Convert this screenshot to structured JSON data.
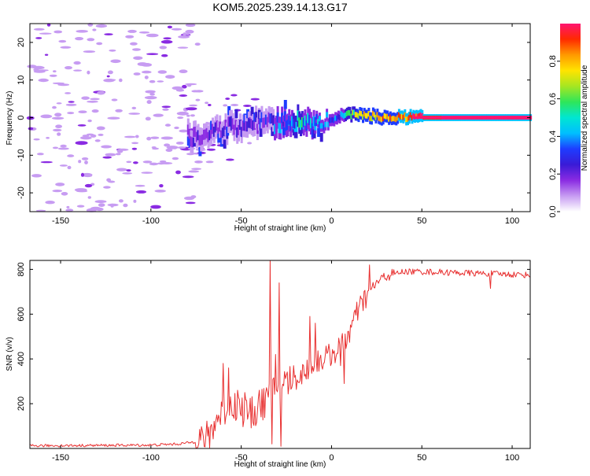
{
  "title": "KOM5.2025.239.14.13.G17",
  "chart_data": [
    {
      "type": "heatmap",
      "name": "spectrogram",
      "xlabel": "Height of straight line (km)",
      "ylabel": "Frequency (Hz)",
      "xlim": [
        -167,
        110
      ],
      "ylim": [
        -25,
        25
      ],
      "x_ticks": [
        -150,
        -100,
        -50,
        0,
        50,
        100
      ],
      "y_ticks": [
        -20,
        -10,
        0,
        10,
        20
      ],
      "colorbar": {
        "label": "Normalized spectral amplitude",
        "range": [
          0,
          1
        ],
        "ticks": [
          "0.0",
          "0.2",
          "0.4",
          "0.6",
          "0.8"
        ],
        "colormap": [
          "#ffffff",
          "#c79cf2",
          "#8a2be2",
          "#3a1bd6",
          "#1e3cff",
          "#00bfff",
          "#00e6d2",
          "#2ee65a",
          "#a6e622",
          "#ffe400",
          "#ff9a00",
          "#ff2a00",
          "#ff1470"
        ]
      },
      "ridge": [
        {
          "x": -80,
          "f": -5.0,
          "a": 0.1
        },
        {
          "x": -70,
          "f": -4.0,
          "a": 0.15
        },
        {
          "x": -60,
          "f": -3.0,
          "a": 0.18
        },
        {
          "x": -50,
          "f": -2.0,
          "a": 0.18
        },
        {
          "x": -40,
          "f": -1.5,
          "a": 0.2
        },
        {
          "x": -30,
          "f": -1.5,
          "a": 0.3
        },
        {
          "x": -20,
          "f": -1.0,
          "a": 0.5
        },
        {
          "x": -10,
          "f": -1.5,
          "a": 0.4
        },
        {
          "x": 0,
          "f": -0.5,
          "a": 0.3
        },
        {
          "x": 5,
          "f": 0.5,
          "a": 0.4
        },
        {
          "x": 10,
          "f": 1.0,
          "a": 0.6
        },
        {
          "x": 20,
          "f": 0.5,
          "a": 0.75
        },
        {
          "x": 30,
          "f": 0.0,
          "a": 0.8
        },
        {
          "x": 40,
          "f": 0.0,
          "a": 0.85
        },
        {
          "x": 50,
          "f": 0.0,
          "a": 0.95
        },
        {
          "x": 110,
          "f": 0.0,
          "a": 1.0
        }
      ]
    },
    {
      "type": "line",
      "name": "snr",
      "xlabel": "Height of straight line (km)",
      "ylabel": "SNR (v/v)",
      "xlim": [
        -167,
        110
      ],
      "ylim": [
        0,
        840
      ],
      "x_ticks": [
        -150,
        -100,
        -50,
        0,
        50,
        100
      ],
      "y_ticks": [
        200,
        400,
        600,
        800
      ],
      "color": "#e83030",
      "envelope": [
        {
          "x": -167,
          "y": 12
        },
        {
          "x": -100,
          "y": 15
        },
        {
          "x": -85,
          "y": 20
        },
        {
          "x": -75,
          "y": 30
        },
        {
          "x": -68,
          "y": 60
        },
        {
          "x": -62,
          "y": 150
        },
        {
          "x": -55,
          "y": 200
        },
        {
          "x": -45,
          "y": 150
        },
        {
          "x": -38,
          "y": 200
        },
        {
          "x": -32,
          "y": 260
        },
        {
          "x": -25,
          "y": 300
        },
        {
          "x": -18,
          "y": 320
        },
        {
          "x": -10,
          "y": 380
        },
        {
          "x": -5,
          "y": 400
        },
        {
          "x": 0,
          "y": 420
        },
        {
          "x": 5,
          "y": 450
        },
        {
          "x": 10,
          "y": 520
        },
        {
          "x": 15,
          "y": 620
        },
        {
          "x": 20,
          "y": 690
        },
        {
          "x": 25,
          "y": 740
        },
        {
          "x": 30,
          "y": 770
        },
        {
          "x": 40,
          "y": 790
        },
        {
          "x": 50,
          "y": 790
        },
        {
          "x": 70,
          "y": 785
        },
        {
          "x": 90,
          "y": 780
        },
        {
          "x": 110,
          "y": 775
        }
      ],
      "spikes": [
        {
          "x": -60,
          "y": 380
        },
        {
          "x": -57,
          "y": 360
        },
        {
          "x": -52,
          "y": 260
        },
        {
          "x": -48,
          "y": 250
        },
        {
          "x": -40,
          "y": 260
        },
        {
          "x": -34,
          "y": 840
        },
        {
          "x": -33,
          "y": 20
        },
        {
          "x": -31,
          "y": 420
        },
        {
          "x": -29,
          "y": 740
        },
        {
          "x": -28,
          "y": 10
        },
        {
          "x": -12,
          "y": 590
        },
        {
          "x": -9,
          "y": 560
        },
        {
          "x": 5,
          "y": 370
        },
        {
          "x": 7,
          "y": 290
        },
        {
          "x": 21,
          "y": 820
        },
        {
          "x": 88,
          "y": 715
        }
      ]
    }
  ]
}
